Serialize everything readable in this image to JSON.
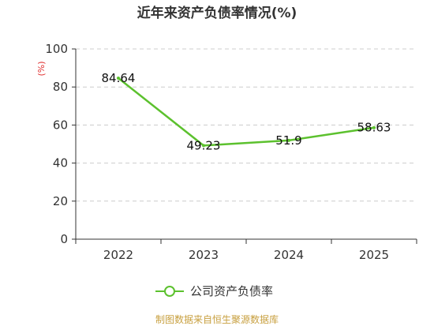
{
  "chart_data": {
    "type": "line",
    "title": "近年来资产负债率情况(%)",
    "y_unit": "(%)",
    "categories": [
      "2022",
      "2023",
      "2024",
      "2025"
    ],
    "series": [
      {
        "name": "公司资产负债率",
        "values": [
          84.64,
          49.23,
          51.9,
          58.63
        ],
        "labels": [
          "84.64",
          "49.23",
          "51.9",
          "58.63"
        ]
      }
    ],
    "y_ticks": [
      "0",
      "20",
      "40",
      "60",
      "80",
      "100"
    ],
    "ylim": [
      0,
      100
    ],
    "grid": true,
    "legend_position": "bottom"
  },
  "source_text": "制图数据来自恒生聚源数据库",
  "colors": {
    "line": "#5cc12e",
    "grid": "#cccccc",
    "axis": "#333333",
    "unit": "#e03030",
    "source": "#c8a040"
  }
}
